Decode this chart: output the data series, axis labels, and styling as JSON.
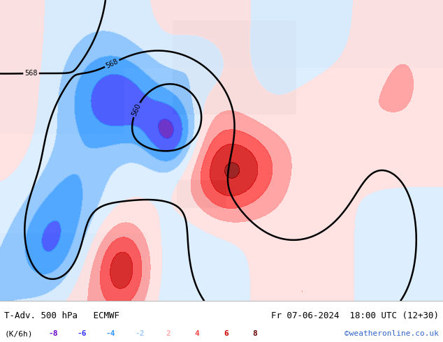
{
  "title_left": "T-Adv. 500 hPa   ECMWF",
  "title_right": "Fr 07-06-2024  18:00 UTC (12+30)",
  "subtitle_left": "(K/6h)",
  "legend_values": [
    -8,
    -6,
    -4,
    -2,
    2,
    4,
    6,
    8
  ],
  "legend_colors": [
    "#6600cc",
    "#3333ff",
    "#3399ff",
    "#99ccff",
    "#ffaaaa",
    "#ff4444",
    "#cc0000",
    "#660000"
  ],
  "credit": "©weatheronline.co.uk",
  "credit_color": "#3366cc",
  "bg_color": "#f0f0f0",
  "bottom_bg": "#e8e8e8",
  "figsize": [
    6.34,
    4.9
  ],
  "dpi": 100
}
